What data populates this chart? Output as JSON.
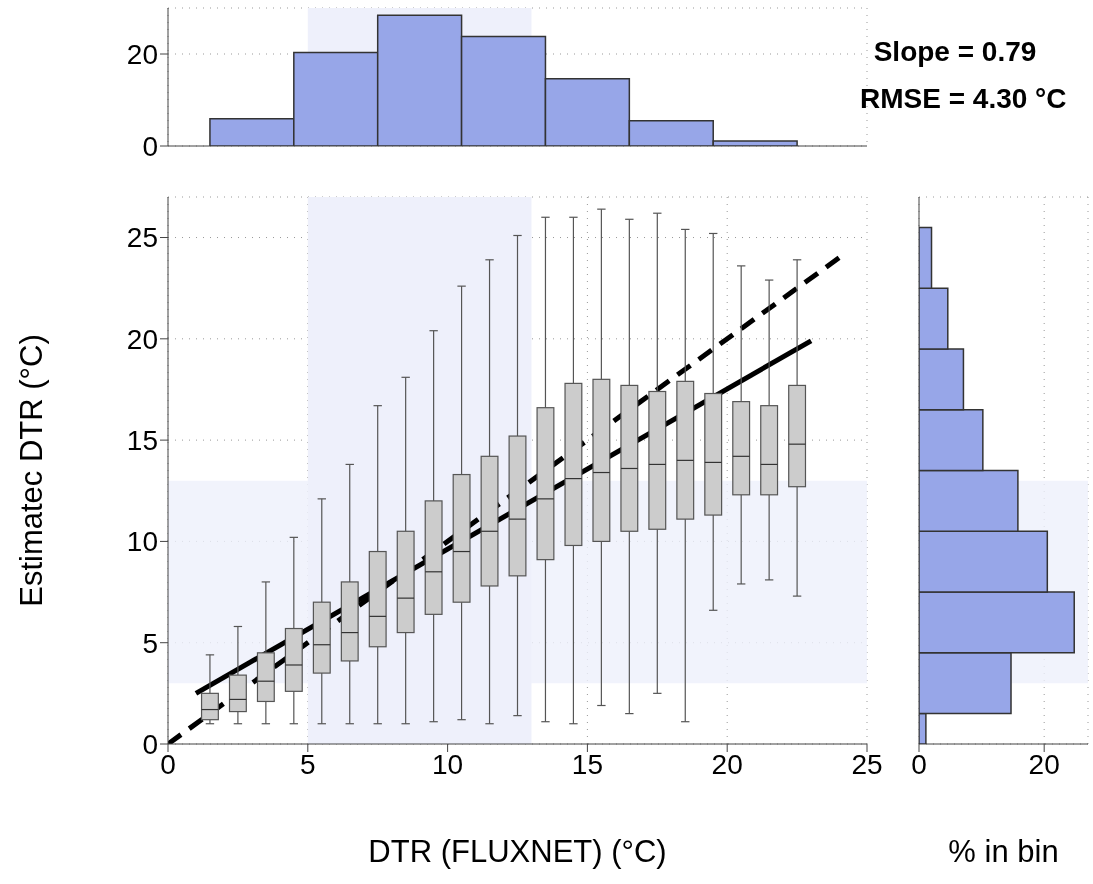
{
  "chart_data": [
    {
      "type": "histogram",
      "bins": [
        1.5,
        4.5,
        7.5,
        10.5,
        13.5,
        16.5,
        19.5,
        22.5
      ],
      "values": [
        5.9,
        20.3,
        28.4,
        23.8,
        14.6,
        5.5,
        1.1
      ],
      "color": "#97a6e8",
      "xlim": [
        0,
        25
      ],
      "xticks": [
        0,
        5,
        10,
        15,
        20,
        25
      ],
      "ylim": [
        0,
        30
      ],
      "yticks": [
        0,
        20
      ],
      "grid": true,
      "tick_labels": "y",
      "bands": [
        {
          "axis": "x",
          "from": 5,
          "to": 13,
          "color": "#eef0fb"
        }
      ],
      "annotations": [
        "Slope = 0.79",
        "RMSE = 4.30 °C"
      ]
    },
    {
      "type": "box",
      "color": "#cccccc",
      "x": [
        1.5,
        2.5,
        3.5,
        4.5,
        5.5,
        6.5,
        7.5,
        8.5,
        9.5,
        10.5,
        11.5,
        12.5,
        13.5,
        14.5,
        15.5,
        16.5,
        17.5,
        18.5,
        19.5,
        20.5,
        21.5,
        22.5
      ],
      "boxes": [
        {
          "low": 1.0,
          "q1": 1.2,
          "median": 1.7,
          "q3": 2.5,
          "high": 4.4
        },
        {
          "low": 1.0,
          "q1": 1.6,
          "median": 2.2,
          "q3": 3.4,
          "high": 5.8
        },
        {
          "low": 1.0,
          "q1": 2.1,
          "median": 3.1,
          "q3": 4.5,
          "high": 8.0
        },
        {
          "low": 1.0,
          "q1": 2.6,
          "median": 3.9,
          "q3": 5.7,
          "high": 10.2
        },
        {
          "low": 1.0,
          "q1": 3.5,
          "median": 4.9,
          "q3": 7.0,
          "high": 12.1
        },
        {
          "low": 1.0,
          "q1": 4.1,
          "median": 5.5,
          "q3": 8.0,
          "high": 13.8
        },
        {
          "low": 1.0,
          "q1": 4.8,
          "median": 6.3,
          "q3": 9.5,
          "high": 16.7
        },
        {
          "low": 1.0,
          "q1": 5.5,
          "median": 7.2,
          "q3": 10.5,
          "high": 18.1
        },
        {
          "low": 1.1,
          "q1": 6.4,
          "median": 8.5,
          "q3": 12.0,
          "high": 20.4
        },
        {
          "low": 1.2,
          "q1": 7.0,
          "median": 9.5,
          "q3": 13.3,
          "high": 22.6
        },
        {
          "low": 1.0,
          "q1": 7.8,
          "median": 10.5,
          "q3": 14.2,
          "high": 23.9
        },
        {
          "low": 1.4,
          "q1": 8.3,
          "median": 11.1,
          "q3": 15.2,
          "high": 25.1
        },
        {
          "low": 1.1,
          "q1": 9.1,
          "median": 12.1,
          "q3": 16.6,
          "high": 26.0
        },
        {
          "low": 1.0,
          "q1": 9.8,
          "median": 13.1,
          "q3": 17.8,
          "high": 26.0
        },
        {
          "low": 1.9,
          "q1": 10.0,
          "median": 13.4,
          "q3": 18.0,
          "high": 26.4
        },
        {
          "low": 1.5,
          "q1": 10.5,
          "median": 13.6,
          "q3": 17.7,
          "high": 25.9
        },
        {
          "low": 2.5,
          "q1": 10.6,
          "median": 13.8,
          "q3": 17.4,
          "high": 26.2
        },
        {
          "low": 1.1,
          "q1": 11.1,
          "median": 14.0,
          "q3": 17.9,
          "high": 25.4
        },
        {
          "low": 6.6,
          "q1": 11.3,
          "median": 13.9,
          "q3": 17.3,
          "high": 25.2
        },
        {
          "low": 7.9,
          "q1": 12.3,
          "median": 14.2,
          "q3": 16.9,
          "high": 23.6
        },
        {
          "low": 8.1,
          "q1": 12.3,
          "median": 13.8,
          "q3": 16.7,
          "high": 22.9
        },
        {
          "low": 7.3,
          "q1": 12.7,
          "median": 14.8,
          "q3": 17.7,
          "high": 23.9
        }
      ],
      "series": [
        {
          "type": "line",
          "x": [
            0,
            24
          ],
          "values": [
            0,
            24
          ],
          "color": "#000000",
          "line_style": "dashed"
        },
        {
          "type": "line",
          "x": [
            1,
            23
          ],
          "values": [
            2.5,
            19.9
          ],
          "color": "#000000",
          "line_style": "solid"
        }
      ],
      "xlabel": "DTR (FLUXNET) (°C)",
      "ylabel": "Estimatec DTR (°C)",
      "xlim": [
        0,
        25
      ],
      "xticks": [
        0,
        5,
        10,
        15,
        20,
        25
      ],
      "ylim": [
        0,
        27
      ],
      "yticks": [
        0,
        5,
        10,
        15,
        20,
        25
      ],
      "grid": true,
      "bands": [
        {
          "axis": "x",
          "from": 5,
          "to": 13,
          "color": "#eef0fb"
        },
        {
          "axis": "y",
          "from": 3,
          "to": 13,
          "color": "#eef0fb"
        }
      ]
    },
    {
      "type": "histogram",
      "orientation": "horizontal",
      "bins": [
        0,
        1.5,
        4.5,
        7.5,
        10.5,
        13.5,
        16.5,
        19.5,
        22.5,
        25.5
      ],
      "values": [
        1.1,
        14.7,
        24.8,
        20.5,
        15.8,
        10.2,
        7.1,
        4.6,
        2.0
      ],
      "color": "#97a6e8",
      "xlabel": "% in bin",
      "xlim": [
        0,
        27
      ],
      "xticks": [
        0,
        20
      ],
      "ylim": [
        0,
        27
      ],
      "yticks": [
        0,
        5,
        10,
        15,
        20,
        25
      ],
      "grid": true,
      "tick_labels": "x",
      "bands": [
        {
          "axis": "y",
          "from": 3,
          "to": 13,
          "color": "#eef0fb"
        }
      ]
    }
  ]
}
